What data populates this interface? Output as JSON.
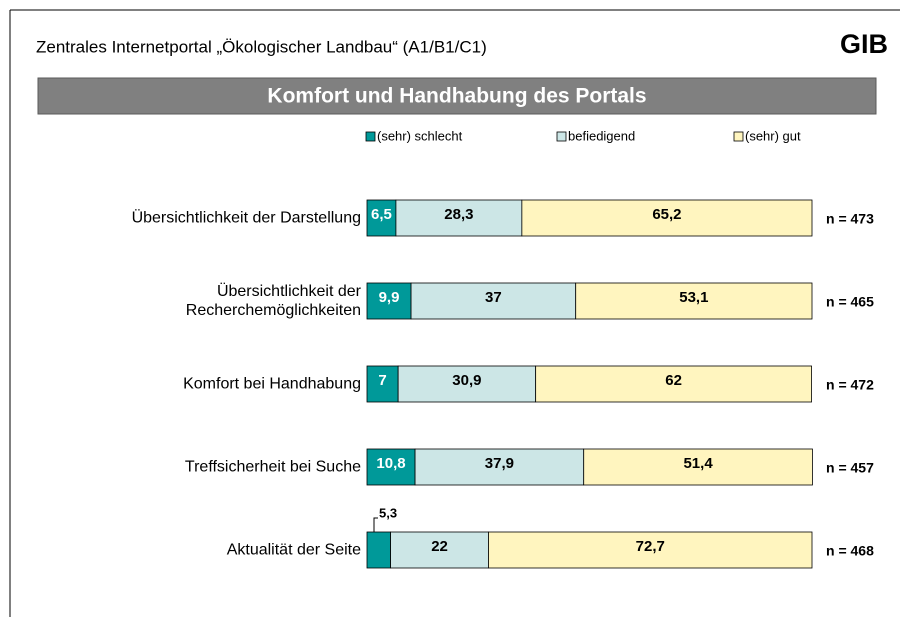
{
  "chart_data": {
    "type": "stacked_bar_horizontal",
    "header": "Zentrales Internetportal „Ökologischer Landbau“ (A1/B1/C1)",
    "logo": "GIB",
    "title": "Komfort und Handhabung des Portals",
    "categories": [
      "Übersichtlichkeit der Darstellung",
      "Übersichtlichkeit der Recherchemöglichkeiten",
      "Komfort bei Handhabung",
      "Treffsicherheit bei Suche",
      "Aktualität der Seite"
    ],
    "series": [
      {
        "name": "(sehr) schlecht",
        "color": "#009999",
        "label_color": "#ffffff",
        "values": [
          6.5,
          9.9,
          7,
          10.8,
          5.3
        ],
        "value_labels": [
          "6,5",
          "9,9",
          "7",
          "10,8",
          "5,3"
        ]
      },
      {
        "name": "befiedigend",
        "color": "#cce6e6",
        "label_color": "#000000",
        "values": [
          28.3,
          37,
          30.9,
          37.9,
          22
        ],
        "value_labels": [
          "28,3",
          "37",
          "30,9",
          "37,9",
          "22"
        ]
      },
      {
        "name": "(sehr) gut",
        "color": "#fff5bf",
        "label_color": "#000000",
        "values": [
          65.2,
          53.1,
          62,
          51.4,
          72.7
        ],
        "value_labels": [
          "65,2",
          "53,1",
          "62",
          "51,4",
          "72,7"
        ]
      }
    ],
    "n_labels": [
      "n = 473",
      "n = 465",
      "n = 472",
      "n = 457",
      "n = 468"
    ],
    "xlim": [
      0,
      100
    ],
    "legend": "top"
  }
}
